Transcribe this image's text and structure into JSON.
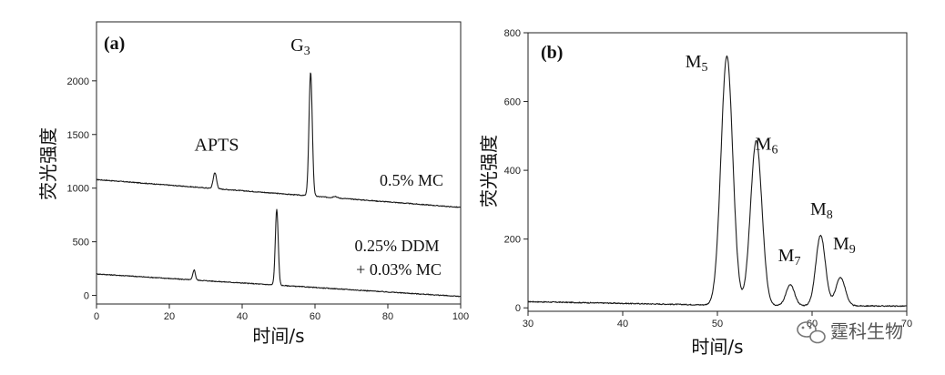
{
  "chart_data": [
    {
      "type": "line",
      "panel_label": "(a)",
      "xlabel": "时间/s",
      "ylabel": "荧光强度",
      "xlim": [
        0,
        100
      ],
      "ylim": [
        -80,
        2550
      ],
      "xticks": [
        0,
        20,
        40,
        60,
        80,
        100
      ],
      "yticks": [
        0,
        500,
        1000,
        1500,
        2000
      ],
      "series": [
        {
          "label": "0.5% MC",
          "baseline": [
            [
              0,
              1080
            ],
            [
              100,
              820
            ]
          ],
          "peaks": [
            {
              "x": 32.5,
              "height": 150,
              "width": 0.45
            },
            {
              "x": 58.8,
              "height": 1150,
              "width": 0.45
            },
            {
              "x": 65.5,
              "height": 15,
              "width": 0.5
            }
          ]
        },
        {
          "label_line1": "0.25% DDM",
          "label_line2": "+ 0.03% MC",
          "baseline": [
            [
              0,
              200
            ],
            [
              100,
              -10
            ]
          ],
          "peaks": [
            {
              "x": 26.8,
              "height": 95,
              "width": 0.35
            },
            {
              "x": 49.5,
              "height": 705,
              "width": 0.4
            }
          ]
        }
      ],
      "annotations": [
        {
          "text": "APTS",
          "x": 33,
          "y": 1350
        },
        {
          "text": "G",
          "sub": "3",
          "x": 56,
          "y": 2280
        }
      ]
    },
    {
      "type": "line",
      "panel_label": "(b)",
      "xlabel": "时间/s",
      "ylabel": "荧光强度",
      "xlim": [
        30,
        70
      ],
      "ylim": [
        -10,
        800
      ],
      "xticks": [
        30,
        40,
        50,
        60,
        70
      ],
      "yticks": [
        0,
        200,
        400,
        600,
        800
      ],
      "series": [
        {
          "baseline": [
            [
              30,
              18
            ],
            [
              50,
              8
            ],
            [
              70,
              5
            ]
          ],
          "peaks": [
            {
              "x": 51.0,
              "height": 725,
              "width": 0.62
            },
            {
              "x": 54.1,
              "height": 478,
              "width": 0.6
            },
            {
              "x": 57.7,
              "height": 60,
              "width": 0.45
            },
            {
              "x": 60.9,
              "height": 205,
              "width": 0.5
            },
            {
              "x": 63.0,
              "height": 82,
              "width": 0.5
            }
          ]
        }
      ],
      "annotations": [
        {
          "text": "M",
          "sub": "5",
          "x": 47.8,
          "y": 700
        },
        {
          "text": "M",
          "sub": "6",
          "x": 55.2,
          "y": 460
        },
        {
          "text": "M",
          "sub": "7",
          "x": 57.6,
          "y": 135
        },
        {
          "text": "M",
          "sub": "8",
          "x": 61.0,
          "y": 270
        },
        {
          "text": "M",
          "sub": "9",
          "x": 63.4,
          "y": 170
        }
      ]
    }
  ],
  "watermark": "霆科生物"
}
